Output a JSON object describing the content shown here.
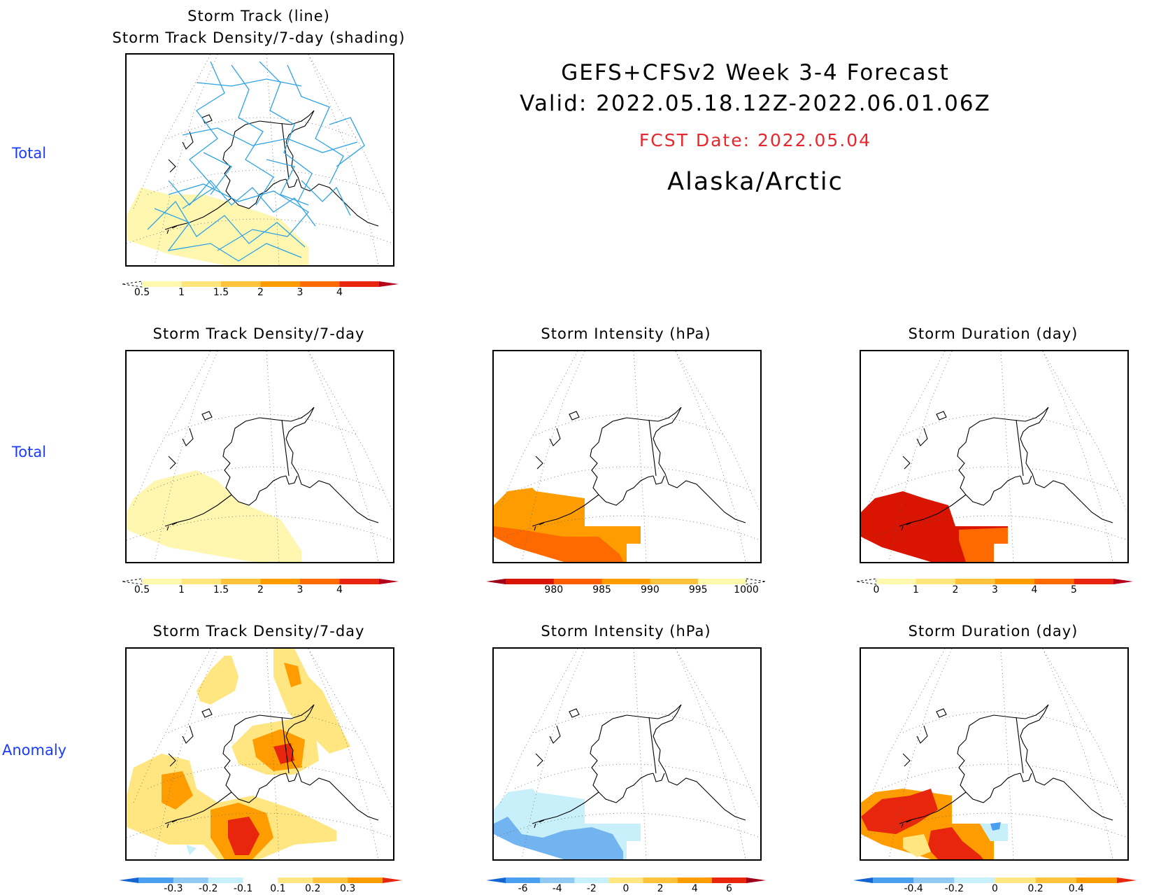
{
  "header": {
    "line1": "GEFS+CFSv2 Week 3-4 Forecast",
    "line2": "Valid: 2022.05.18.12Z-2022.06.01.06Z",
    "fcst": "FCST Date: 2022.05.04",
    "region": "Alaska/Arctic",
    "fcst_color": "#e8262d"
  },
  "row_labels": {
    "row1": "Total",
    "row2": "Total",
    "row3": "Anomaly"
  },
  "panels": {
    "p1": {
      "title1": "Storm Track (line)",
      "title2": "Storm Track Density/7-day (shading)"
    },
    "p2": {
      "title": "Storm Track Density/7-day"
    },
    "p3": {
      "title": "Storm Intensity (hPa)"
    },
    "p4": {
      "title": "Storm Duration (day)"
    },
    "p5": {
      "title": "Storm Track Density/7-day"
    },
    "p6": {
      "title": "Storm Intensity (hPa)"
    },
    "p7": {
      "title": "Storm Duration (day)"
    }
  },
  "colorbars": {
    "density": {
      "labels": [
        "0.5",
        "1",
        "1.5",
        "2",
        "3",
        "4"
      ],
      "colors": [
        "#fff9b0",
        "#ffe67a",
        "#ffc23d",
        "#ff9d00",
        "#ff6a00",
        "#e8260d",
        "#b5001a"
      ]
    },
    "intensity": {
      "labels": [
        "980",
        "985",
        "990",
        "995",
        "1000"
      ],
      "colors": [
        "#a0001a",
        "#d91400",
        "#ff5e00",
        "#ff9d00",
        "#ffc23d",
        "#fff9b0"
      ]
    },
    "duration": {
      "labels": [
        "0",
        "1",
        "2",
        "3",
        "4",
        "5"
      ],
      "colors": [
        "#fff9b0",
        "#ffe67a",
        "#ffc23d",
        "#ff9d00",
        "#ff6a00",
        "#e8260d",
        "#b5001a"
      ]
    },
    "density_anom": {
      "labels": [
        "-0.3",
        "-0.2",
        "-0.1",
        "0.1",
        "0.2",
        "0.3"
      ],
      "colors": [
        "#1464d2",
        "#4aa0f0",
        "#8fcaf5",
        "#c8f0fa",
        "#ffffff",
        "#ffe680",
        "#ffc23d",
        "#ff9d00",
        "#e8260d"
      ]
    },
    "intensity_anom": {
      "labels": [
        "-6",
        "-4",
        "-2",
        "0",
        "2",
        "4",
        "6"
      ],
      "colors": [
        "#1464d2",
        "#4aa0f0",
        "#8fcaf5",
        "#c8f0fa",
        "#ffe680",
        "#ffc23d",
        "#ff9d00",
        "#e8260d",
        "#a0001a"
      ]
    },
    "duration_anom": {
      "labels": [
        "-0.4",
        "-0.2",
        "0",
        "0.2",
        "0.4"
      ],
      "colors": [
        "#1464d2",
        "#4aa0f0",
        "#8fcaf5",
        "#c8f0fa",
        "#ffe680",
        "#ffc23d",
        "#ff9d00",
        "#e8260d"
      ]
    }
  },
  "fills": {
    "track_density": "#fff7b0",
    "track_line": "#2ea3e6",
    "int_light": "#ff9d00",
    "int_dark": "#ff6a00",
    "dur_dark": "#d91400",
    "dur_mid": "#ff6a00",
    "anom_light": "#ffe680",
    "anom_mid": "#ff9d00",
    "anom_dark": "#e8260d",
    "neg_light": "#c8f0fa",
    "neg_mid": "#72b4f0"
  }
}
